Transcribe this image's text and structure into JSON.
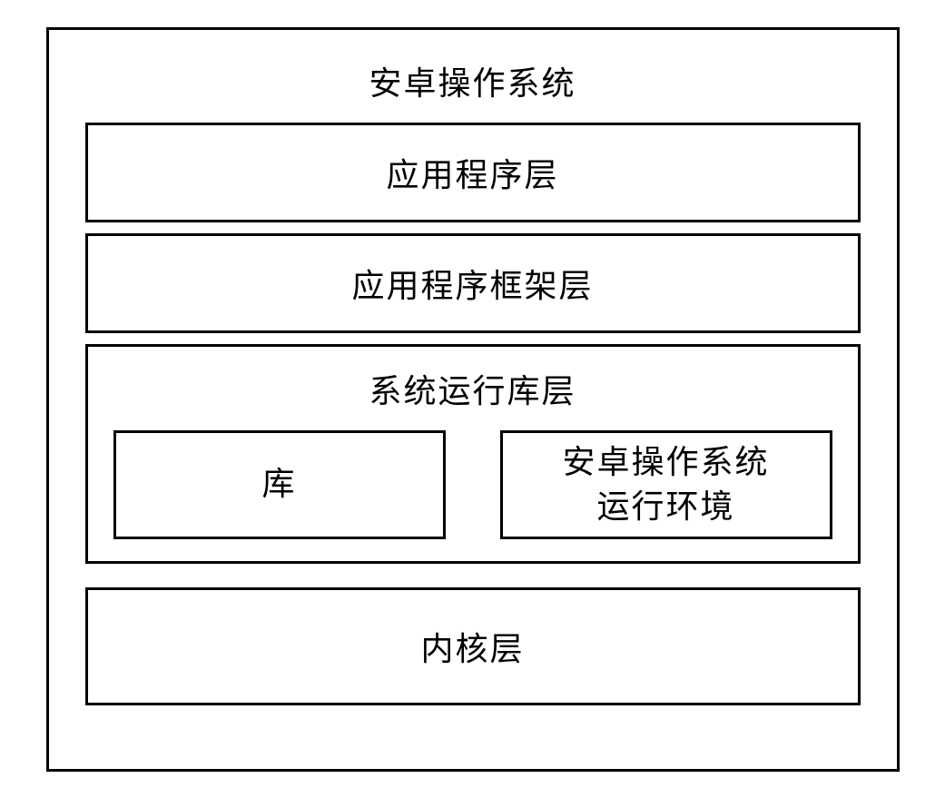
{
  "diagram": {
    "type": "layered-architecture",
    "title": "安卓操作系统",
    "border_color": "#000000",
    "border_width": 3,
    "background_color": "#ffffff",
    "text_color": "#000000",
    "font_family": "SimSun",
    "title_fontsize": 36,
    "label_fontsize": 36,
    "layers": {
      "application": {
        "label": "应用程序层"
      },
      "framework": {
        "label": "应用程序框架层"
      },
      "runtime": {
        "label": "系统运行库层",
        "sub_boxes": {
          "library": {
            "label": "库"
          },
          "runtime_env": {
            "label_line1": "安卓操作系统",
            "label_line2": "运行环境"
          }
        }
      },
      "kernel": {
        "label": "内核层"
      }
    }
  }
}
